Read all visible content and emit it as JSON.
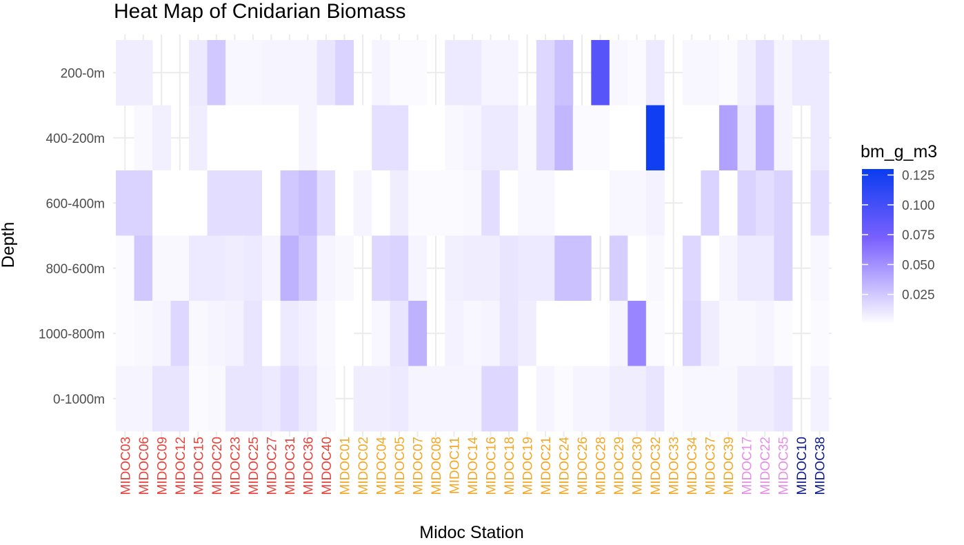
{
  "chart_data": {
    "type": "heatmap",
    "title": "Heat Map of Cnidarian Biomass",
    "xlabel": "Midoc Station",
    "ylabel": "Depth",
    "grid": true,
    "legend": {
      "title": "bm_g_m3",
      "position": "right",
      "breaks": [
        0.125,
        0.1,
        0.075,
        0.05,
        0.025
      ],
      "break_labels": [
        "0.125",
        "0.100",
        "0.075",
        "0.050",
        "0.025"
      ],
      "range": [
        0.0,
        0.13
      ],
      "low_color": "#ffffff",
      "mid_color": "#7b61ff",
      "high_color": "#0a3cf0"
    },
    "stations": [
      {
        "name": "MIDOC03",
        "color": "#e8413a"
      },
      {
        "name": "MIDOC06",
        "color": "#e8413a"
      },
      {
        "name": "MIDOC09",
        "color": "#e8413a"
      },
      {
        "name": "MIDOC12",
        "color": "#e8413a"
      },
      {
        "name": "MIDOC15",
        "color": "#e8413a"
      },
      {
        "name": "MIDOC20",
        "color": "#e8413a"
      },
      {
        "name": "MIDOC23",
        "color": "#e8413a"
      },
      {
        "name": "MIDOC25",
        "color": "#e8413a"
      },
      {
        "name": "MIDOC27",
        "color": "#e8413a"
      },
      {
        "name": "MIDOC31",
        "color": "#e8413a"
      },
      {
        "name": "MIDOC36",
        "color": "#e8413a"
      },
      {
        "name": "MIDOC40",
        "color": "#e8413a"
      },
      {
        "name": "MIDOC01",
        "color": "#f5a623"
      },
      {
        "name": "MIDOC02",
        "color": "#f5a623"
      },
      {
        "name": "MIDOC04",
        "color": "#f5a623"
      },
      {
        "name": "MIDOC05",
        "color": "#f5a623"
      },
      {
        "name": "MIDOC07",
        "color": "#f5a623"
      },
      {
        "name": "MIDOC08",
        "color": "#f5a623"
      },
      {
        "name": "MIDOC11",
        "color": "#f5a623"
      },
      {
        "name": "MIDOC14",
        "color": "#f5a623"
      },
      {
        "name": "MIDOC16",
        "color": "#f5a623"
      },
      {
        "name": "MIDOC18",
        "color": "#f5a623"
      },
      {
        "name": "MIDOC19",
        "color": "#f5a623"
      },
      {
        "name": "MIDOC21",
        "color": "#f5a623"
      },
      {
        "name": "MIDOC24",
        "color": "#f5a623"
      },
      {
        "name": "MIDOC26",
        "color": "#f5a623"
      },
      {
        "name": "MIDOC28",
        "color": "#f5a623"
      },
      {
        "name": "MIDOC29",
        "color": "#f5a623"
      },
      {
        "name": "MIDOC30",
        "color": "#f5a623"
      },
      {
        "name": "MIDOC32",
        "color": "#f5a623"
      },
      {
        "name": "MIDOC33",
        "color": "#f5a623"
      },
      {
        "name": "MIDOC34",
        "color": "#f5a623"
      },
      {
        "name": "MIDOC37",
        "color": "#f5a623"
      },
      {
        "name": "MIDOC39",
        "color": "#f5a623"
      },
      {
        "name": "MIDOC17",
        "color": "#e58de8"
      },
      {
        "name": "MIDOC22",
        "color": "#e58de8"
      },
      {
        "name": "MIDOC35",
        "color": "#e58de8"
      },
      {
        "name": "MIDOC10",
        "color": "#0d1a8c"
      },
      {
        "name": "MIDOC38",
        "color": "#0d1a8c"
      }
    ],
    "depths": [
      "200-0m",
      "400-200m",
      "600-400m",
      "800-600m",
      "1000-800m",
      "0-1000m"
    ],
    "values": [
      [
        0.008,
        0.008,
        null,
        null,
        0.01,
        0.025,
        0.004,
        0.004,
        0.005,
        0.005,
        0.005,
        0.012,
        0.02,
        null,
        0.005,
        0.002,
        0.002,
        null,
        0.01,
        0.01,
        0.005,
        0.005,
        null,
        0.018,
        0.028,
        null,
        0.09,
        0.004,
        0.002,
        0.01,
        null,
        0.004,
        0.004,
        0.002,
        0.007,
        0.015,
        0.005,
        0.01,
        0.01
      ],
      [
        null,
        0.003,
        0.007,
        null,
        0.008,
        0.0,
        0.0,
        0.0,
        0.0,
        0.0,
        0.005,
        0.0,
        0.0,
        0.0,
        0.014,
        0.014,
        0.0,
        0.0,
        0.003,
        0.005,
        0.01,
        0.01,
        0.003,
        0.018,
        0.033,
        0.002,
        0.002,
        0.0,
        0.0,
        0.127,
        null,
        0.0,
        0.0,
        0.042,
        0.01,
        0.035,
        0.005,
        null,
        0.01
      ],
      [
        0.02,
        0.02,
        0.0,
        0.0,
        0.0,
        0.015,
        0.015,
        0.015,
        0.0,
        0.025,
        0.03,
        0.015,
        0.0,
        0.005,
        0.0,
        0.008,
        0.002,
        0.002,
        0.002,
        0.003,
        0.015,
        0.0,
        0.004,
        0.004,
        0.0,
        0.0,
        0.0,
        0.004,
        0.004,
        0.006,
        null,
        0.0,
        0.02,
        0.0,
        0.02,
        0.015,
        0.02,
        null,
        0.015
      ],
      [
        0.002,
        0.025,
        0.003,
        0.003,
        0.01,
        0.01,
        0.008,
        0.01,
        0.005,
        0.035,
        0.025,
        0.005,
        0.003,
        null,
        0.018,
        0.02,
        0.005,
        null,
        0.007,
        0.008,
        0.008,
        0.012,
        0.01,
        0.01,
        0.028,
        0.028,
        null,
        0.022,
        0.0,
        0.003,
        null,
        0.018,
        0.0,
        0.005,
        0.01,
        0.01,
        0.02,
        null,
        0.004
      ],
      [
        0.002,
        0.003,
        0.005,
        0.018,
        0.003,
        0.005,
        0.006,
        0.012,
        0.0,
        0.01,
        0.007,
        0.003,
        0.0,
        null,
        0.004,
        0.012,
        0.035,
        null,
        0.006,
        0.004,
        0.005,
        0.012,
        0.008,
        0.0,
        0.0,
        0.0,
        0.0,
        0.005,
        0.055,
        0.002,
        null,
        0.02,
        0.008,
        0.003,
        0.003,
        0.005,
        0.002,
        null,
        0.002
      ],
      [
        0.005,
        0.005,
        0.012,
        0.012,
        0.002,
        0.003,
        0.012,
        0.012,
        0.01,
        0.015,
        0.01,
        0.004,
        null,
        0.008,
        0.008,
        0.01,
        0.005,
        0.005,
        0.005,
        0.005,
        0.018,
        0.018,
        0.0,
        0.005,
        0.002,
        0.005,
        0.005,
        0.008,
        0.008,
        0.012,
        0.002,
        0.004,
        0.004,
        0.004,
        0.008,
        0.008,
        0.012,
        null,
        0.006
      ]
    ]
  }
}
